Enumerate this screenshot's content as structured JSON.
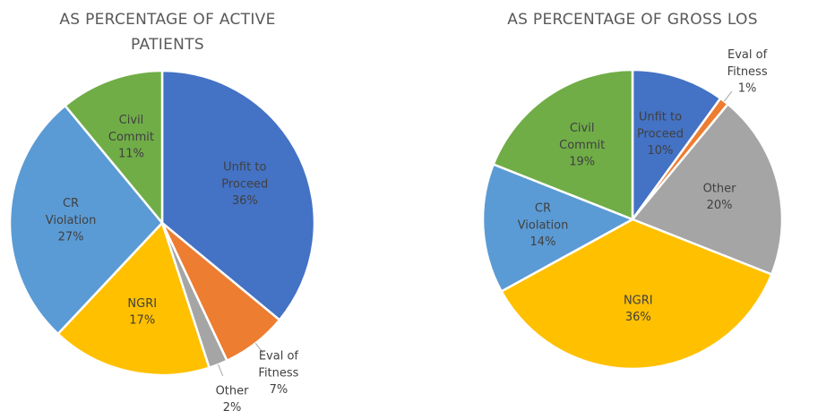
{
  "chart_data": [
    {
      "type": "pie",
      "title": "AS PERCENTAGE OF ACTIVE PATIENTS",
      "categories": [
        "Unfit to Proceed",
        "Eval of Fitness",
        "Other",
        "NGRI",
        "CR Violation",
        "Civil Commit"
      ],
      "values": [
        36,
        7,
        2,
        17,
        27,
        11
      ],
      "value_labels": [
        "36%",
        "7%",
        "2%",
        "17%",
        "27%",
        "11%"
      ],
      "colors": [
        "#4472c4",
        "#ed7d31",
        "#a5a5a5",
        "#ffc000",
        "#5b9bd5",
        "#70ad47"
      ]
    },
    {
      "type": "pie",
      "title": "AS PERCENTAGE OF GROSS LOS",
      "categories": [
        "Unfit to Proceed",
        "Eval of Fitness",
        "Other",
        "NGRI",
        "CR Violation",
        "Civil Commit"
      ],
      "values": [
        10,
        1,
        20,
        36,
        14,
        19
      ],
      "value_labels": [
        "10%",
        "1%",
        "20%",
        "36%",
        "14%",
        "19%"
      ],
      "colors": [
        "#4472c4",
        "#ed7d31",
        "#a5a5a5",
        "#ffc000",
        "#5b9bd5",
        "#70ad47"
      ]
    }
  ]
}
